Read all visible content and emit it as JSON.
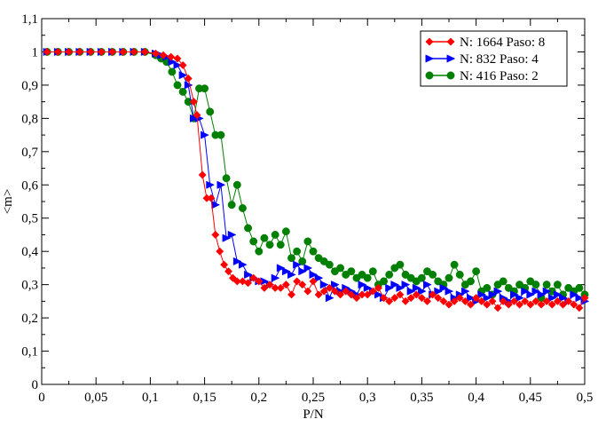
{
  "chart_data": {
    "type": "scatter",
    "xlabel": "P/N",
    "ylabel": "<m>",
    "xlim": [
      0,
      0.5
    ],
    "ylim": [
      0,
      1.1
    ],
    "x_ticks": [
      0,
      0.05,
      0.1,
      0.15,
      0.2,
      0.25,
      0.3,
      0.35,
      0.4,
      0.45,
      0.5
    ],
    "x_tick_labels": [
      "0",
      "0,05",
      "0,1",
      "0,15",
      "0,2",
      "0,25",
      "0,3",
      "0,35",
      "0,4",
      "0,45",
      "0,5"
    ],
    "y_ticks": [
      0,
      0.1,
      0.2,
      0.3,
      0.4,
      0.5,
      0.6,
      0.7,
      0.8,
      0.9,
      1.0,
      1.1
    ],
    "y_tick_labels": [
      "0",
      "0,1",
      "0,2",
      "0,3",
      "0,4",
      "0,5",
      "0,6",
      "0,7",
      "0,8",
      "0,9",
      "1",
      "1,1"
    ],
    "grid": false,
    "legend_position": "top-right",
    "series": [
      {
        "name": "N: 1664 Paso: 8",
        "color": "#ff0000",
        "marker": "diamond",
        "points": [
          [
            0.005,
            1.0
          ],
          [
            0.015,
            1.0
          ],
          [
            0.025,
            1.0
          ],
          [
            0.035,
            1.0
          ],
          [
            0.045,
            1.0
          ],
          [
            0.055,
            1.0
          ],
          [
            0.065,
            1.0
          ],
          [
            0.075,
            1.0
          ],
          [
            0.085,
            1.0
          ],
          [
            0.095,
            1.0
          ],
          [
            0.105,
            0.995
          ],
          [
            0.112,
            0.99
          ],
          [
            0.119,
            0.985
          ],
          [
            0.125,
            0.98
          ],
          [
            0.13,
            0.96
          ],
          [
            0.135,
            0.92
          ],
          [
            0.14,
            0.85
          ],
          [
            0.143,
            0.81
          ],
          [
            0.148,
            0.63
          ],
          [
            0.152,
            0.56
          ],
          [
            0.156,
            0.56
          ],
          [
            0.16,
            0.45
          ],
          [
            0.164,
            0.4
          ],
          [
            0.168,
            0.36
          ],
          [
            0.172,
            0.34
          ],
          [
            0.176,
            0.32
          ],
          [
            0.18,
            0.31
          ],
          [
            0.185,
            0.31
          ],
          [
            0.19,
            0.305
          ],
          [
            0.195,
            0.32
          ],
          [
            0.2,
            0.31
          ],
          [
            0.205,
            0.29
          ],
          [
            0.21,
            0.3
          ],
          [
            0.215,
            0.29
          ],
          [
            0.22,
            0.29
          ],
          [
            0.225,
            0.3
          ],
          [
            0.23,
            0.27
          ],
          [
            0.235,
            0.31
          ],
          [
            0.24,
            0.3
          ],
          [
            0.245,
            0.28
          ],
          [
            0.25,
            0.31
          ],
          [
            0.255,
            0.27
          ],
          [
            0.26,
            0.28
          ],
          [
            0.265,
            0.29
          ],
          [
            0.27,
            0.28
          ],
          [
            0.275,
            0.27
          ],
          [
            0.28,
            0.28
          ],
          [
            0.285,
            0.27
          ],
          [
            0.29,
            0.26
          ],
          [
            0.295,
            0.27
          ],
          [
            0.3,
            0.27
          ],
          [
            0.305,
            0.28
          ],
          [
            0.31,
            0.29
          ],
          [
            0.315,
            0.26
          ],
          [
            0.32,
            0.25
          ],
          [
            0.325,
            0.26
          ],
          [
            0.33,
            0.27
          ],
          [
            0.335,
            0.25
          ],
          [
            0.34,
            0.26
          ],
          [
            0.345,
            0.27
          ],
          [
            0.35,
            0.26
          ],
          [
            0.355,
            0.25
          ],
          [
            0.36,
            0.27
          ],
          [
            0.365,
            0.26
          ],
          [
            0.37,
            0.25
          ],
          [
            0.375,
            0.24
          ],
          [
            0.38,
            0.25
          ],
          [
            0.385,
            0.26
          ],
          [
            0.39,
            0.25
          ],
          [
            0.395,
            0.24
          ],
          [
            0.4,
            0.26
          ],
          [
            0.405,
            0.25
          ],
          [
            0.41,
            0.24
          ],
          [
            0.415,
            0.25
          ],
          [
            0.42,
            0.23
          ],
          [
            0.425,
            0.25
          ],
          [
            0.43,
            0.24
          ],
          [
            0.435,
            0.25
          ],
          [
            0.44,
            0.24
          ],
          [
            0.445,
            0.25
          ],
          [
            0.45,
            0.24
          ],
          [
            0.455,
            0.25
          ],
          [
            0.46,
            0.24
          ],
          [
            0.465,
            0.25
          ],
          [
            0.47,
            0.24
          ],
          [
            0.475,
            0.25
          ],
          [
            0.48,
            0.24
          ],
          [
            0.485,
            0.25
          ],
          [
            0.49,
            0.24
          ],
          [
            0.495,
            0.23
          ],
          [
            0.5,
            0.26
          ]
        ]
      },
      {
        "name": "N: 832 Paso: 4",
        "color": "#0000ff",
        "marker": "triangle-right",
        "points": [
          [
            0.005,
            1.0
          ],
          [
            0.015,
            1.0
          ],
          [
            0.025,
            1.0
          ],
          [
            0.035,
            1.0
          ],
          [
            0.045,
            1.0
          ],
          [
            0.055,
            1.0
          ],
          [
            0.065,
            1.0
          ],
          [
            0.075,
            1.0
          ],
          [
            0.085,
            1.0
          ],
          [
            0.095,
            1.0
          ],
          [
            0.105,
            0.995
          ],
          [
            0.11,
            0.99
          ],
          [
            0.115,
            0.985
          ],
          [
            0.12,
            0.97
          ],
          [
            0.125,
            0.96
          ],
          [
            0.13,
            0.93
          ],
          [
            0.135,
            0.9
          ],
          [
            0.14,
            0.8
          ],
          [
            0.145,
            0.8
          ],
          [
            0.15,
            0.75
          ],
          [
            0.155,
            0.6
          ],
          [
            0.16,
            0.54
          ],
          [
            0.165,
            0.6
          ],
          [
            0.17,
            0.44
          ],
          [
            0.175,
            0.45
          ],
          [
            0.18,
            0.37
          ],
          [
            0.185,
            0.36
          ],
          [
            0.19,
            0.33
          ],
          [
            0.195,
            0.32
          ],
          [
            0.2,
            0.31
          ],
          [
            0.205,
            0.31
          ],
          [
            0.21,
            0.3
          ],
          [
            0.215,
            0.32
          ],
          [
            0.22,
            0.35
          ],
          [
            0.225,
            0.34
          ],
          [
            0.23,
            0.33
          ],
          [
            0.235,
            0.36
          ],
          [
            0.24,
            0.34
          ],
          [
            0.245,
            0.35
          ],
          [
            0.25,
            0.33
          ],
          [
            0.255,
            0.32
          ],
          [
            0.26,
            0.3
          ],
          [
            0.265,
            0.26
          ],
          [
            0.27,
            0.3
          ],
          [
            0.275,
            0.28
          ],
          [
            0.28,
            0.29
          ],
          [
            0.285,
            0.28
          ],
          [
            0.29,
            0.27
          ],
          [
            0.295,
            0.3
          ],
          [
            0.3,
            0.29
          ],
          [
            0.305,
            0.28
          ],
          [
            0.31,
            0.27
          ],
          [
            0.315,
            0.26
          ],
          [
            0.32,
            0.29
          ],
          [
            0.325,
            0.3
          ],
          [
            0.33,
            0.29
          ],
          [
            0.335,
            0.3
          ],
          [
            0.34,
            0.28
          ],
          [
            0.345,
            0.29
          ],
          [
            0.35,
            0.28
          ],
          [
            0.355,
            0.3
          ],
          [
            0.36,
            0.27
          ],
          [
            0.365,
            0.28
          ],
          [
            0.37,
            0.29
          ],
          [
            0.375,
            0.28
          ],
          [
            0.38,
            0.26
          ],
          [
            0.385,
            0.27
          ],
          [
            0.39,
            0.28
          ],
          [
            0.395,
            0.26
          ],
          [
            0.4,
            0.25
          ],
          [
            0.405,
            0.27
          ],
          [
            0.41,
            0.26
          ],
          [
            0.415,
            0.27
          ],
          [
            0.42,
            0.28
          ],
          [
            0.425,
            0.26
          ],
          [
            0.43,
            0.25
          ],
          [
            0.435,
            0.27
          ],
          [
            0.44,
            0.26
          ],
          [
            0.445,
            0.28
          ],
          [
            0.45,
            0.27
          ],
          [
            0.455,
            0.28
          ],
          [
            0.46,
            0.27
          ],
          [
            0.465,
            0.28
          ],
          [
            0.47,
            0.26
          ],
          [
            0.475,
            0.27
          ],
          [
            0.48,
            0.26
          ],
          [
            0.485,
            0.25
          ],
          [
            0.49,
            0.27
          ],
          [
            0.495,
            0.26
          ],
          [
            0.5,
            0.25
          ]
        ]
      },
      {
        "name": "N: 416 Paso: 2",
        "color": "#008000",
        "marker": "circle",
        "points": [
          [
            0.005,
            1.0
          ],
          [
            0.015,
            1.0
          ],
          [
            0.025,
            1.0
          ],
          [
            0.035,
            1.0
          ],
          [
            0.045,
            1.0
          ],
          [
            0.055,
            1.0
          ],
          [
            0.065,
            1.0
          ],
          [
            0.075,
            1.0
          ],
          [
            0.085,
            1.0
          ],
          [
            0.095,
            1.0
          ],
          [
            0.105,
            0.99
          ],
          [
            0.11,
            0.98
          ],
          [
            0.115,
            0.97
          ],
          [
            0.12,
            0.94
          ],
          [
            0.125,
            0.9
          ],
          [
            0.13,
            0.88
          ],
          [
            0.135,
            0.85
          ],
          [
            0.14,
            0.8
          ],
          [
            0.145,
            0.89
          ],
          [
            0.15,
            0.89
          ],
          [
            0.155,
            0.82
          ],
          [
            0.16,
            0.75
          ],
          [
            0.165,
            0.75
          ],
          [
            0.17,
            0.62
          ],
          [
            0.175,
            0.54
          ],
          [
            0.18,
            0.6
          ],
          [
            0.185,
            0.53
          ],
          [
            0.19,
            0.47
          ],
          [
            0.195,
            0.43
          ],
          [
            0.2,
            0.4
          ],
          [
            0.205,
            0.44
          ],
          [
            0.21,
            0.42
          ],
          [
            0.215,
            0.45
          ],
          [
            0.22,
            0.42
          ],
          [
            0.225,
            0.46
          ],
          [
            0.23,
            0.38
          ],
          [
            0.235,
            0.4
          ],
          [
            0.24,
            0.37
          ],
          [
            0.245,
            0.43
          ],
          [
            0.25,
            0.4
          ],
          [
            0.255,
            0.38
          ],
          [
            0.26,
            0.37
          ],
          [
            0.265,
            0.36
          ],
          [
            0.27,
            0.34
          ],
          [
            0.275,
            0.35
          ],
          [
            0.28,
            0.33
          ],
          [
            0.285,
            0.34
          ],
          [
            0.29,
            0.32
          ],
          [
            0.295,
            0.33
          ],
          [
            0.3,
            0.32
          ],
          [
            0.305,
            0.34
          ],
          [
            0.31,
            0.3
          ],
          [
            0.315,
            0.31
          ],
          [
            0.32,
            0.33
          ],
          [
            0.325,
            0.35
          ],
          [
            0.33,
            0.36
          ],
          [
            0.335,
            0.33
          ],
          [
            0.34,
            0.32
          ],
          [
            0.345,
            0.31
          ],
          [
            0.35,
            0.32
          ],
          [
            0.355,
            0.34
          ],
          [
            0.36,
            0.33
          ],
          [
            0.365,
            0.31
          ],
          [
            0.37,
            0.3
          ],
          [
            0.375,
            0.32
          ],
          [
            0.38,
            0.36
          ],
          [
            0.385,
            0.33
          ],
          [
            0.39,
            0.3
          ],
          [
            0.395,
            0.31
          ],
          [
            0.4,
            0.34
          ],
          [
            0.405,
            0.28
          ],
          [
            0.41,
            0.29
          ],
          [
            0.415,
            0.27
          ],
          [
            0.42,
            0.3
          ],
          [
            0.425,
            0.31
          ],
          [
            0.43,
            0.29
          ],
          [
            0.435,
            0.28
          ],
          [
            0.44,
            0.3
          ],
          [
            0.445,
            0.29
          ],
          [
            0.45,
            0.31
          ],
          [
            0.455,
            0.3
          ],
          [
            0.46,
            0.26
          ],
          [
            0.465,
            0.3
          ],
          [
            0.47,
            0.28
          ],
          [
            0.475,
            0.3
          ],
          [
            0.48,
            0.27
          ],
          [
            0.485,
            0.29
          ],
          [
            0.49,
            0.28
          ],
          [
            0.495,
            0.29
          ],
          [
            0.5,
            0.27
          ]
        ]
      }
    ]
  }
}
